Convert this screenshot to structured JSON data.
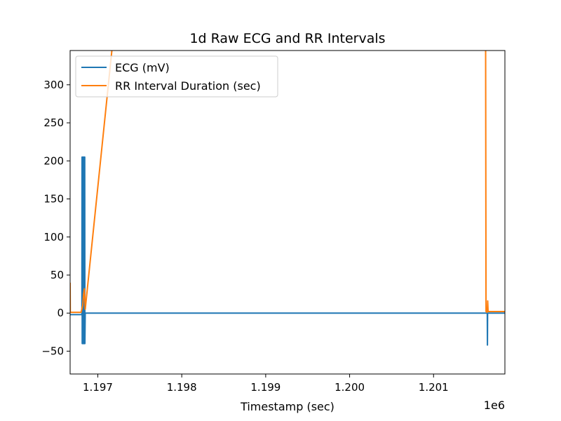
{
  "chart_data": {
    "type": "line",
    "title": "1d Raw ECG and RR Intervals",
    "xlabel": "Timestamp (sec)",
    "ylabel": "",
    "x_offset_label": "1e6",
    "xlim": [
      1196.67,
      1201.85
    ],
    "ylim": [
      -80,
      345
    ],
    "x_ticks": [
      1197,
      1198,
      1199,
      1200,
      1201
    ],
    "x_tick_labels": [
      "1.197",
      "1.198",
      "1.199",
      "1.200",
      "1.201"
    ],
    "y_ticks": [
      -50,
      0,
      50,
      100,
      150,
      200,
      250,
      300
    ],
    "y_tick_labels": [
      "−50",
      "0",
      "50",
      "100",
      "150",
      "200",
      "250",
      "300"
    ],
    "legend_position": "top-left",
    "series": [
      {
        "name": "ECG (mV)",
        "color": "#1f77b4",
        "x": [
          1196.67,
          1196.81,
          1196.812,
          1196.814,
          1196.816,
          1196.818,
          1196.82,
          1196.822,
          1196.824,
          1196.826,
          1196.828,
          1196.83,
          1196.832,
          1196.834,
          1196.836,
          1196.838,
          1196.84,
          1196.842,
          1196.844,
          1196.846,
          1196.85,
          1196.86,
          1201.62,
          1201.64,
          1201.642,
          1201.644,
          1201.646,
          1201.66,
          1201.85
        ],
        "y": [
          -2,
          -2,
          205,
          -40,
          205,
          -40,
          205,
          -40,
          205,
          -40,
          205,
          -40,
          205,
          -40,
          205,
          -40,
          205,
          -40,
          205,
          -40,
          0,
          0,
          0,
          0,
          -42,
          0,
          0,
          0,
          0
        ]
      },
      {
        "name": "RR Interval Duration (sec)",
        "color": "#ff7f0e",
        "x": [
          1196.67,
          1196.672,
          1196.68,
          1196.8,
          1196.82,
          1196.83,
          1196.84,
          1196.85,
          1197.2,
          1201.62,
          1201.625,
          1201.632,
          1201.636,
          1201.64,
          1201.645,
          1201.65,
          1201.85
        ],
        "y": [
          40,
          1,
          1,
          1,
          10,
          25,
          32,
          5,
          380,
          380,
          2,
          6,
          1,
          2,
          16,
          2,
          2
        ]
      }
    ]
  }
}
